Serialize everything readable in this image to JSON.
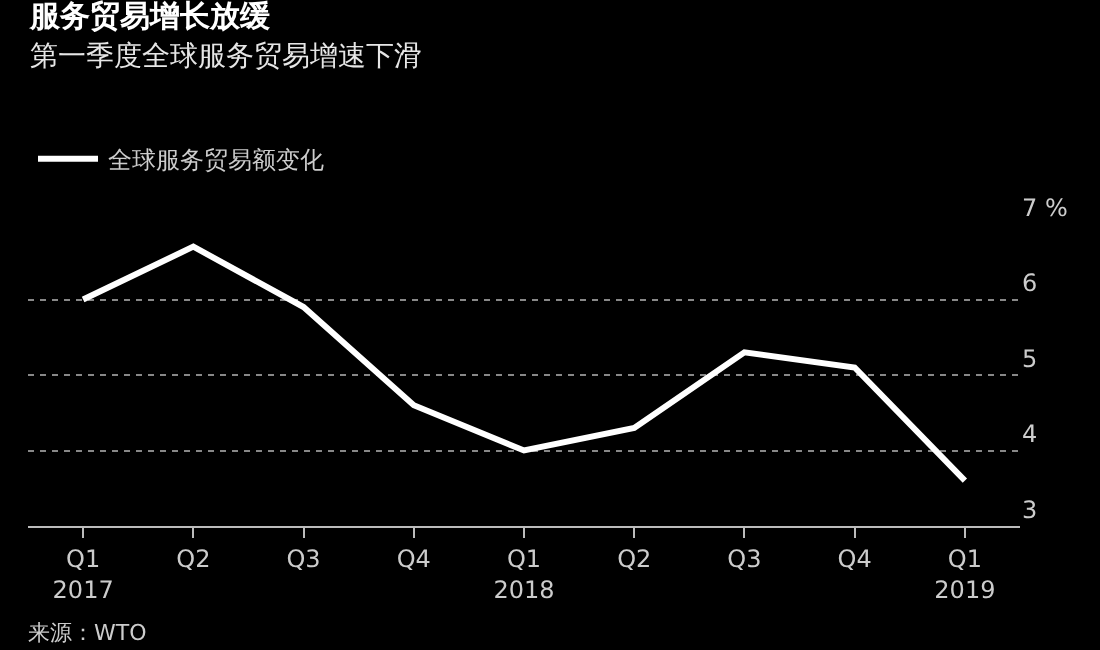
{
  "chart_data": {
    "type": "line",
    "title": "服务贸易增长放缓",
    "subtitle": "第一季度全球服务贸易增速下滑",
    "categories": [
      "Q1\n2017",
      "Q2",
      "Q3",
      "Q4",
      "Q1\n2018",
      "Q2",
      "Q3",
      "Q4",
      "Q1\n2019"
    ],
    "series": [
      {
        "name": "全球服务贸易额变化",
        "color": "#ffffff",
        "values": [
          6.0,
          6.7,
          5.9,
          4.6,
          4.0,
          4.3,
          5.3,
          5.1,
          3.6
        ]
      }
    ],
    "ylim": [
      3,
      7
    ],
    "yticks": [
      3,
      4,
      5,
      6,
      {
        "value": 7,
        "label": "7 %"
      }
    ],
    "grid": "y",
    "legend": "top left",
    "marker": "none",
    "line_style": "solid",
    "annotations": [
      "来源：WTO"
    ]
  }
}
